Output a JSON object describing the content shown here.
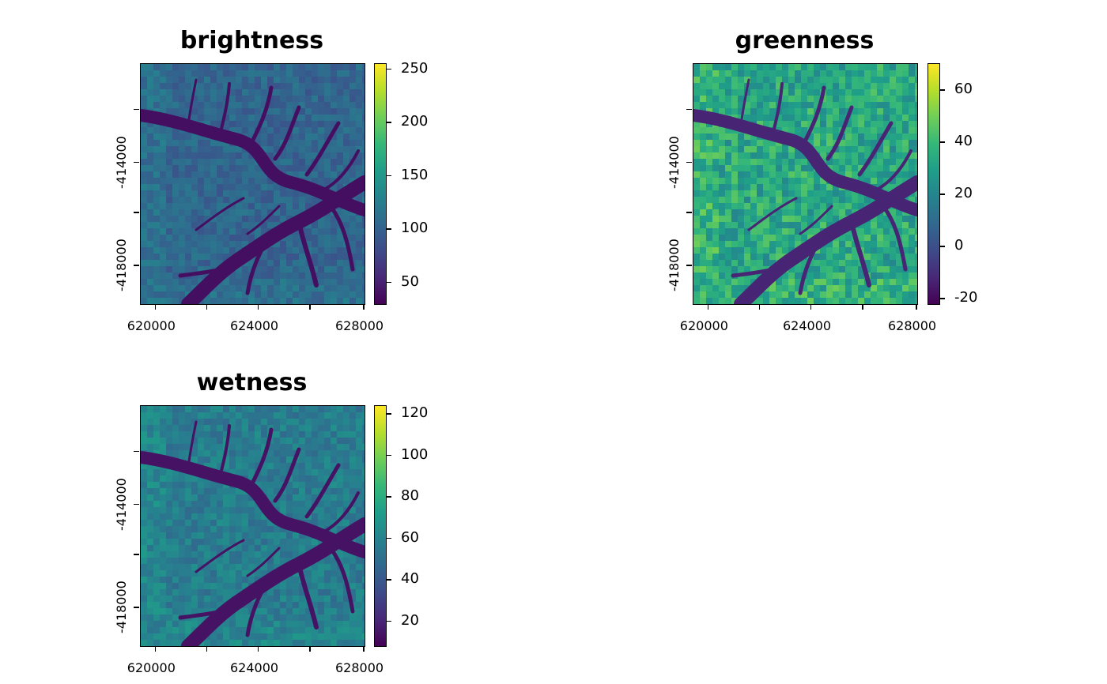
{
  "panels": [
    {
      "id": "brightness",
      "title": "brightness",
      "palette": [
        "#440154",
        "#482878",
        "#3e4a89",
        "#31688e",
        "#26828e",
        "#1f9e89",
        "#35b779",
        "#6ece58",
        "#b5de2b",
        "#fde725"
      ],
      "colorbar": {
        "min": 30,
        "max": 255,
        "ticks": [
          250,
          200,
          150,
          100,
          50
        ]
      },
      "x_ticks": [
        "620000",
        "624000",
        "628000"
      ],
      "y_ticks": [
        "-414000",
        "-418000"
      ],
      "base_level": 0.33,
      "river_level": 0.04,
      "noise": 0.07
    },
    {
      "id": "greenness",
      "title": "greenness",
      "palette": [
        "#440154",
        "#482878",
        "#3e4a89",
        "#31688e",
        "#26828e",
        "#1f9e89",
        "#35b779",
        "#6ece58",
        "#b5de2b",
        "#fde725"
      ],
      "colorbar": {
        "min": -22,
        "max": 70,
        "ticks": [
          60,
          40,
          20,
          0,
          -20
        ]
      },
      "x_ticks": [
        "620000",
        "624000",
        "628000"
      ],
      "y_ticks": [
        "-414000",
        "-418000"
      ],
      "base_level": 0.6,
      "river_level": 0.1,
      "noise": 0.14
    },
    {
      "id": "wetness",
      "title": "wetness",
      "palette": [
        "#440154",
        "#482878",
        "#3e4a89",
        "#31688e",
        "#26828e",
        "#1f9e89",
        "#35b779",
        "#6ece58",
        "#b5de2b",
        "#fde725"
      ],
      "colorbar": {
        "min": 8,
        "max": 124,
        "ticks": [
          120,
          100,
          80,
          60,
          40,
          20
        ]
      },
      "x_ticks": [
        "620000",
        "624000",
        "628000"
      ],
      "y_ticks": [
        "-414000",
        "-418000"
      ],
      "base_level": 0.42,
      "river_level": 0.05,
      "noise": 0.08
    }
  ]
}
